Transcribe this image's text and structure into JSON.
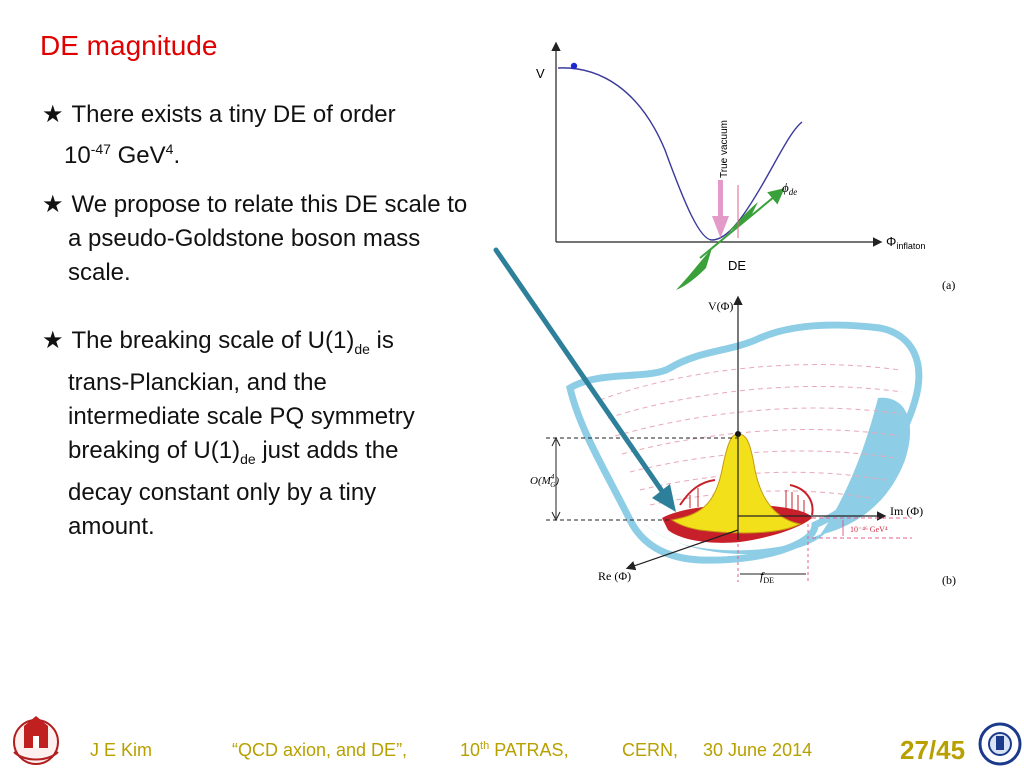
{
  "slide": {
    "title": "DE magnitude"
  },
  "bullets": [
    {
      "star": "★",
      "line1": "There exists a tiny  DE of order",
      "pre_exp": "10",
      "exp1": "-47",
      "mid": " GeV",
      "exp2": "4",
      "end": "."
    },
    {
      "star": "★",
      "line1": "We propose to relate this DE scale to",
      "line2": "a pseudo-Goldstone boson mass",
      "line3": "scale."
    },
    {
      "star": "★",
      "line1a": "The breaking scale of  U(1)",
      "sub1": "de",
      "line1b": "  is",
      "line2": "trans-Planckian, and the",
      "line3": "intermediate scale PQ symmetry",
      "line4a": "breaking of U(1)",
      "sub2": "de",
      "line4b": "  just adds the",
      "line5": "decay constant only by a tiny",
      "line6": "amount."
    }
  ],
  "figure_a": {
    "y_axis_label": "V",
    "x_axis_label_base": "Φ",
    "x_axis_label_sub": "inflaton",
    "vacuum_label": "True vacuum",
    "phi_label_base": "ϕ",
    "phi_label_sub": "de",
    "de_label": "DE",
    "panel_tag": "(a)"
  },
  "figure_b": {
    "y_axis_label": "V(Φ)",
    "im_label": "Im (Φ)",
    "re_label": "Re (Φ)",
    "scale_label": "O(M",
    "scale_label_sup": "4",
    "scale_label_sub": "G",
    "scale_label_end": ")",
    "gev_label": "10⁻⁴⁶ GeV⁴",
    "fde_label_base": "f",
    "fde_label_sub": "DE",
    "panel_tag": "(b)"
  },
  "colors": {
    "title": "#e00000",
    "footer": "#b8a000",
    "curve": "#3a3a9c",
    "bowl": "#8ecde6",
    "peak": "#f2e11a",
    "red_band": "#c8202a",
    "arrow": "#2d7f9a",
    "green": "#3aa13a",
    "pink": "#e06090"
  },
  "footer": {
    "author": "J  E  Kim",
    "talk": "“QCD axion,  and DE”,",
    "conf_base": "10",
    "conf_sup": "th",
    "conf_rest": " PATRAS,",
    "place": "CERN,",
    "date": "30 June  2014",
    "page": "27/45"
  }
}
